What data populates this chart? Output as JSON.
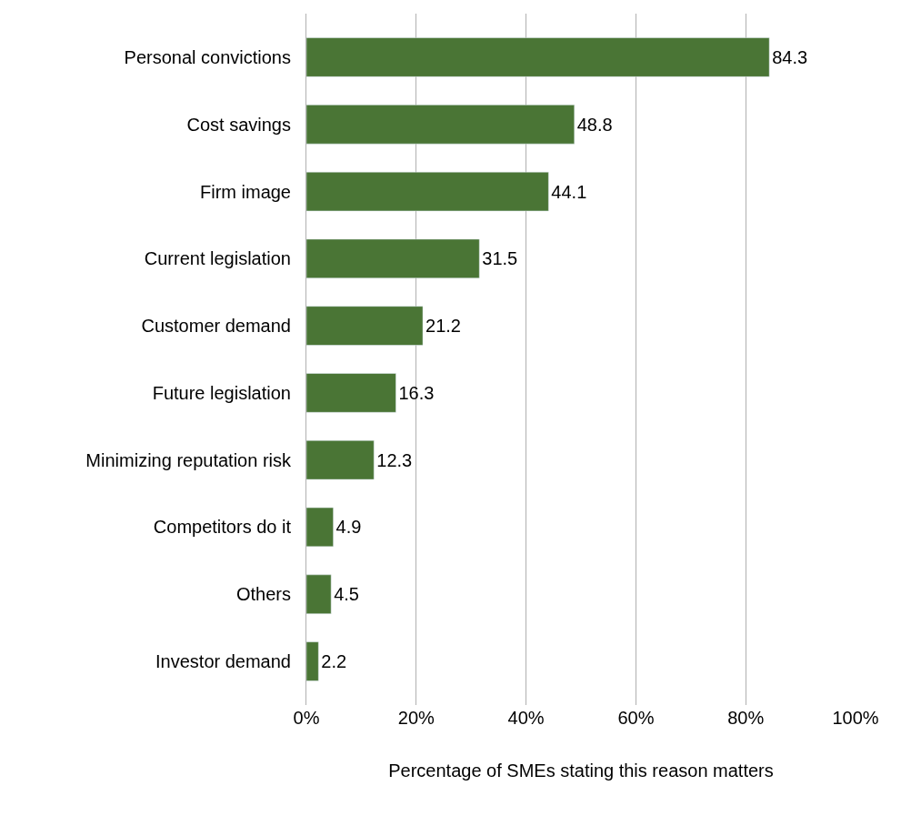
{
  "chart_data": {
    "type": "bar",
    "orientation": "horizontal",
    "xlabel": "Percentage of SMEs stating this reason matters",
    "categories": [
      "Personal convictions",
      "Cost savings",
      "Firm image",
      "Current legislation",
      "Customer demand",
      "Future legislation",
      "Minimizing reputation risk",
      "Competitors do it",
      "Others",
      "Investor demand"
    ],
    "values": [
      84.3,
      48.8,
      44.1,
      31.5,
      21.2,
      16.3,
      12.3,
      4.9,
      4.5,
      2.2
    ],
    "color": "#4a7535",
    "data_labels": true,
    "grid": "x",
    "xlim": [
      0,
      100
    ],
    "xticks": [
      {
        "value": 0,
        "label": "0%"
      },
      {
        "value": 20,
        "label": "20%"
      },
      {
        "value": 40,
        "label": "40%"
      },
      {
        "value": 60,
        "label": "60%"
      },
      {
        "value": 80,
        "label": "80%"
      },
      {
        "value": 100,
        "label": "100%"
      }
    ]
  }
}
